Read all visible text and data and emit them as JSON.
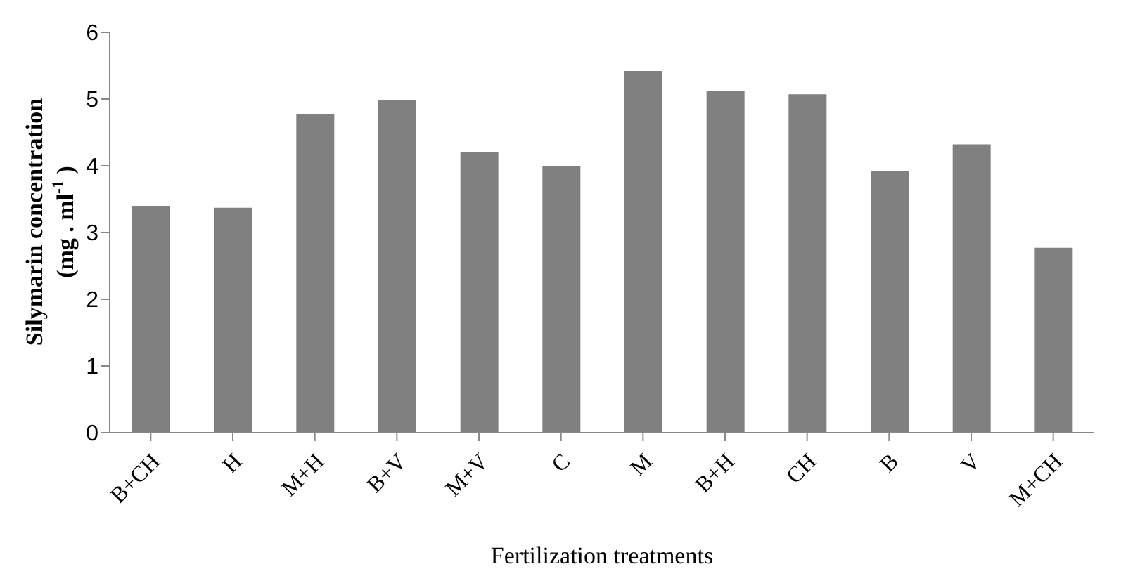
{
  "chart_data": {
    "type": "bar",
    "xlabel": "Fertilization treatments",
    "ylabel": "Silymarin  concentration (mg . ml$^{-1}$)",
    "categories": [
      "B+CH",
      "H",
      "M+H",
      "B+V",
      "M+V",
      "C",
      "M",
      "B+H",
      "CH",
      "B",
      "V",
      "M+CH"
    ],
    "values": [
      3.4,
      3.37,
      4.78,
      4.98,
      4.2,
      4.0,
      5.42,
      5.12,
      5.07,
      3.92,
      4.32,
      2.77
    ],
    "color": "#808080",
    "ylim": [
      0,
      6
    ],
    "yticks": [
      0,
      1,
      2,
      3,
      4,
      5,
      6
    ],
    "grid": false,
    "legend": false
  }
}
